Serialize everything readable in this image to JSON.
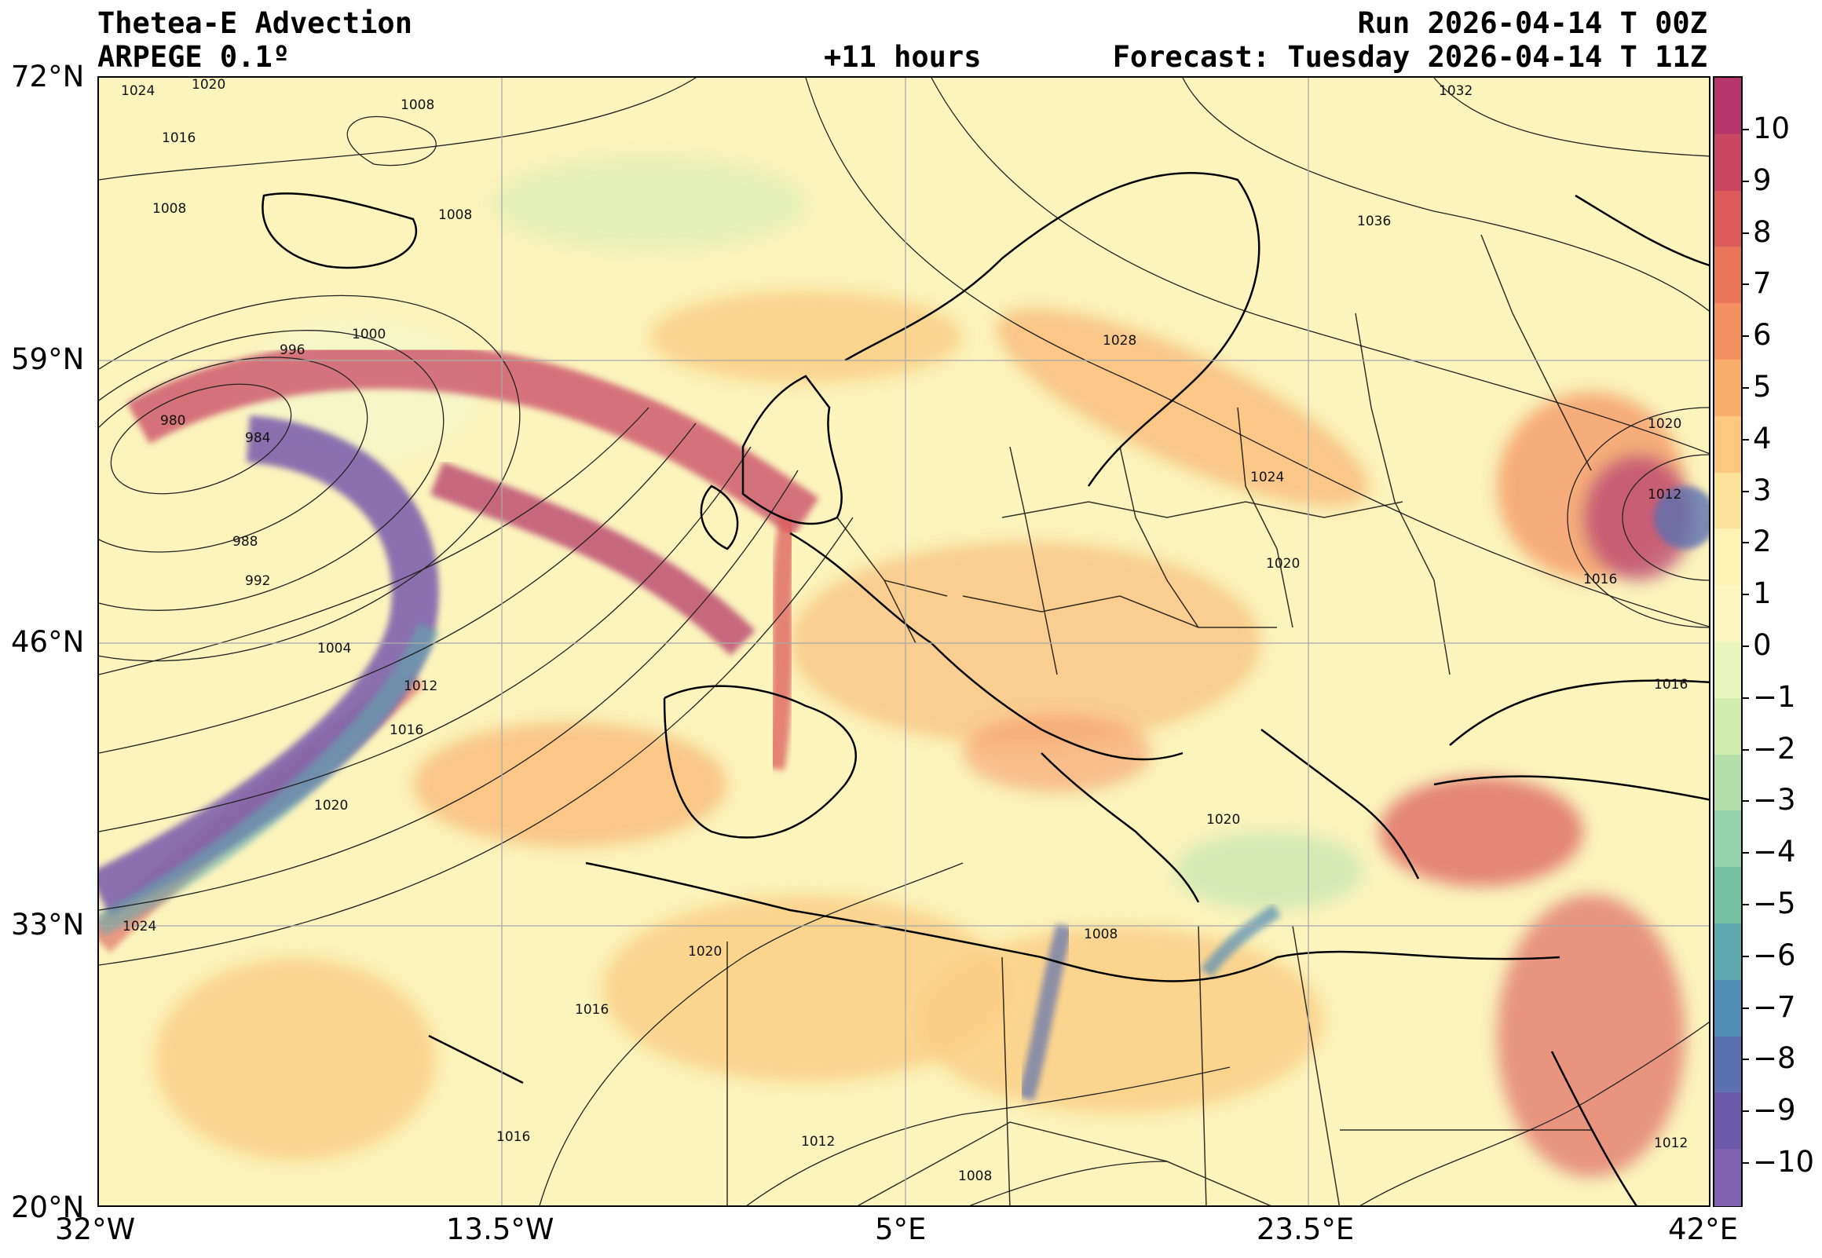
{
  "header": {
    "title": "Thetea-E Advection",
    "model": "ARPEGE 0.1º",
    "lead_time": "+11 hours",
    "run": "Run 2026-04-14 T 00Z",
    "forecast": "Forecast: Tuesday 2026-04-14 T 11Z"
  },
  "axes": {
    "lat_labels": [
      "72°N",
      "59°N",
      "46°N",
      "33°N",
      "20°N"
    ],
    "lon_labels": [
      "32°W",
      "13.5°W",
      "5°E",
      "23.5°E",
      "42°E"
    ]
  },
  "colorbar": {
    "ticks": [
      "10",
      "9",
      "8",
      "7",
      "6",
      "5",
      "4",
      "3",
      "2",
      "1",
      "0",
      "−1",
      "−2",
      "−3",
      "−4",
      "−5",
      "−6",
      "−7",
      "−8",
      "−9",
      "−10"
    ],
    "colors": [
      "#b5376b",
      "#c94763",
      "#dc5b5b",
      "#ea7558",
      "#f49060",
      "#f8ad6a",
      "#fbc87d",
      "#fce199",
      "#fdf2b3",
      "#fbf7c0",
      "#eaf5c0",
      "#d2ecb0",
      "#b4e0ac",
      "#93d1a7",
      "#76c1a6",
      "#5fa8ae",
      "#528db6",
      "#5d71b1",
      "#6b5aa8",
      "#7e62ad"
    ]
  },
  "isobar_labels": [
    "1024",
    "1020",
    "1016",
    "1008",
    "1008",
    "1008",
    "996",
    "1000",
    "980",
    "984",
    "988",
    "992",
    "1004",
    "1012",
    "1016",
    "1020",
    "1024",
    "1032",
    "1036",
    "1028",
    "1024",
    "1020",
    "1016",
    "1020",
    "1012",
    "1016",
    "1020",
    "1020",
    "1016",
    "1016",
    "1012",
    "1008",
    "1008",
    "1012"
  ]
}
